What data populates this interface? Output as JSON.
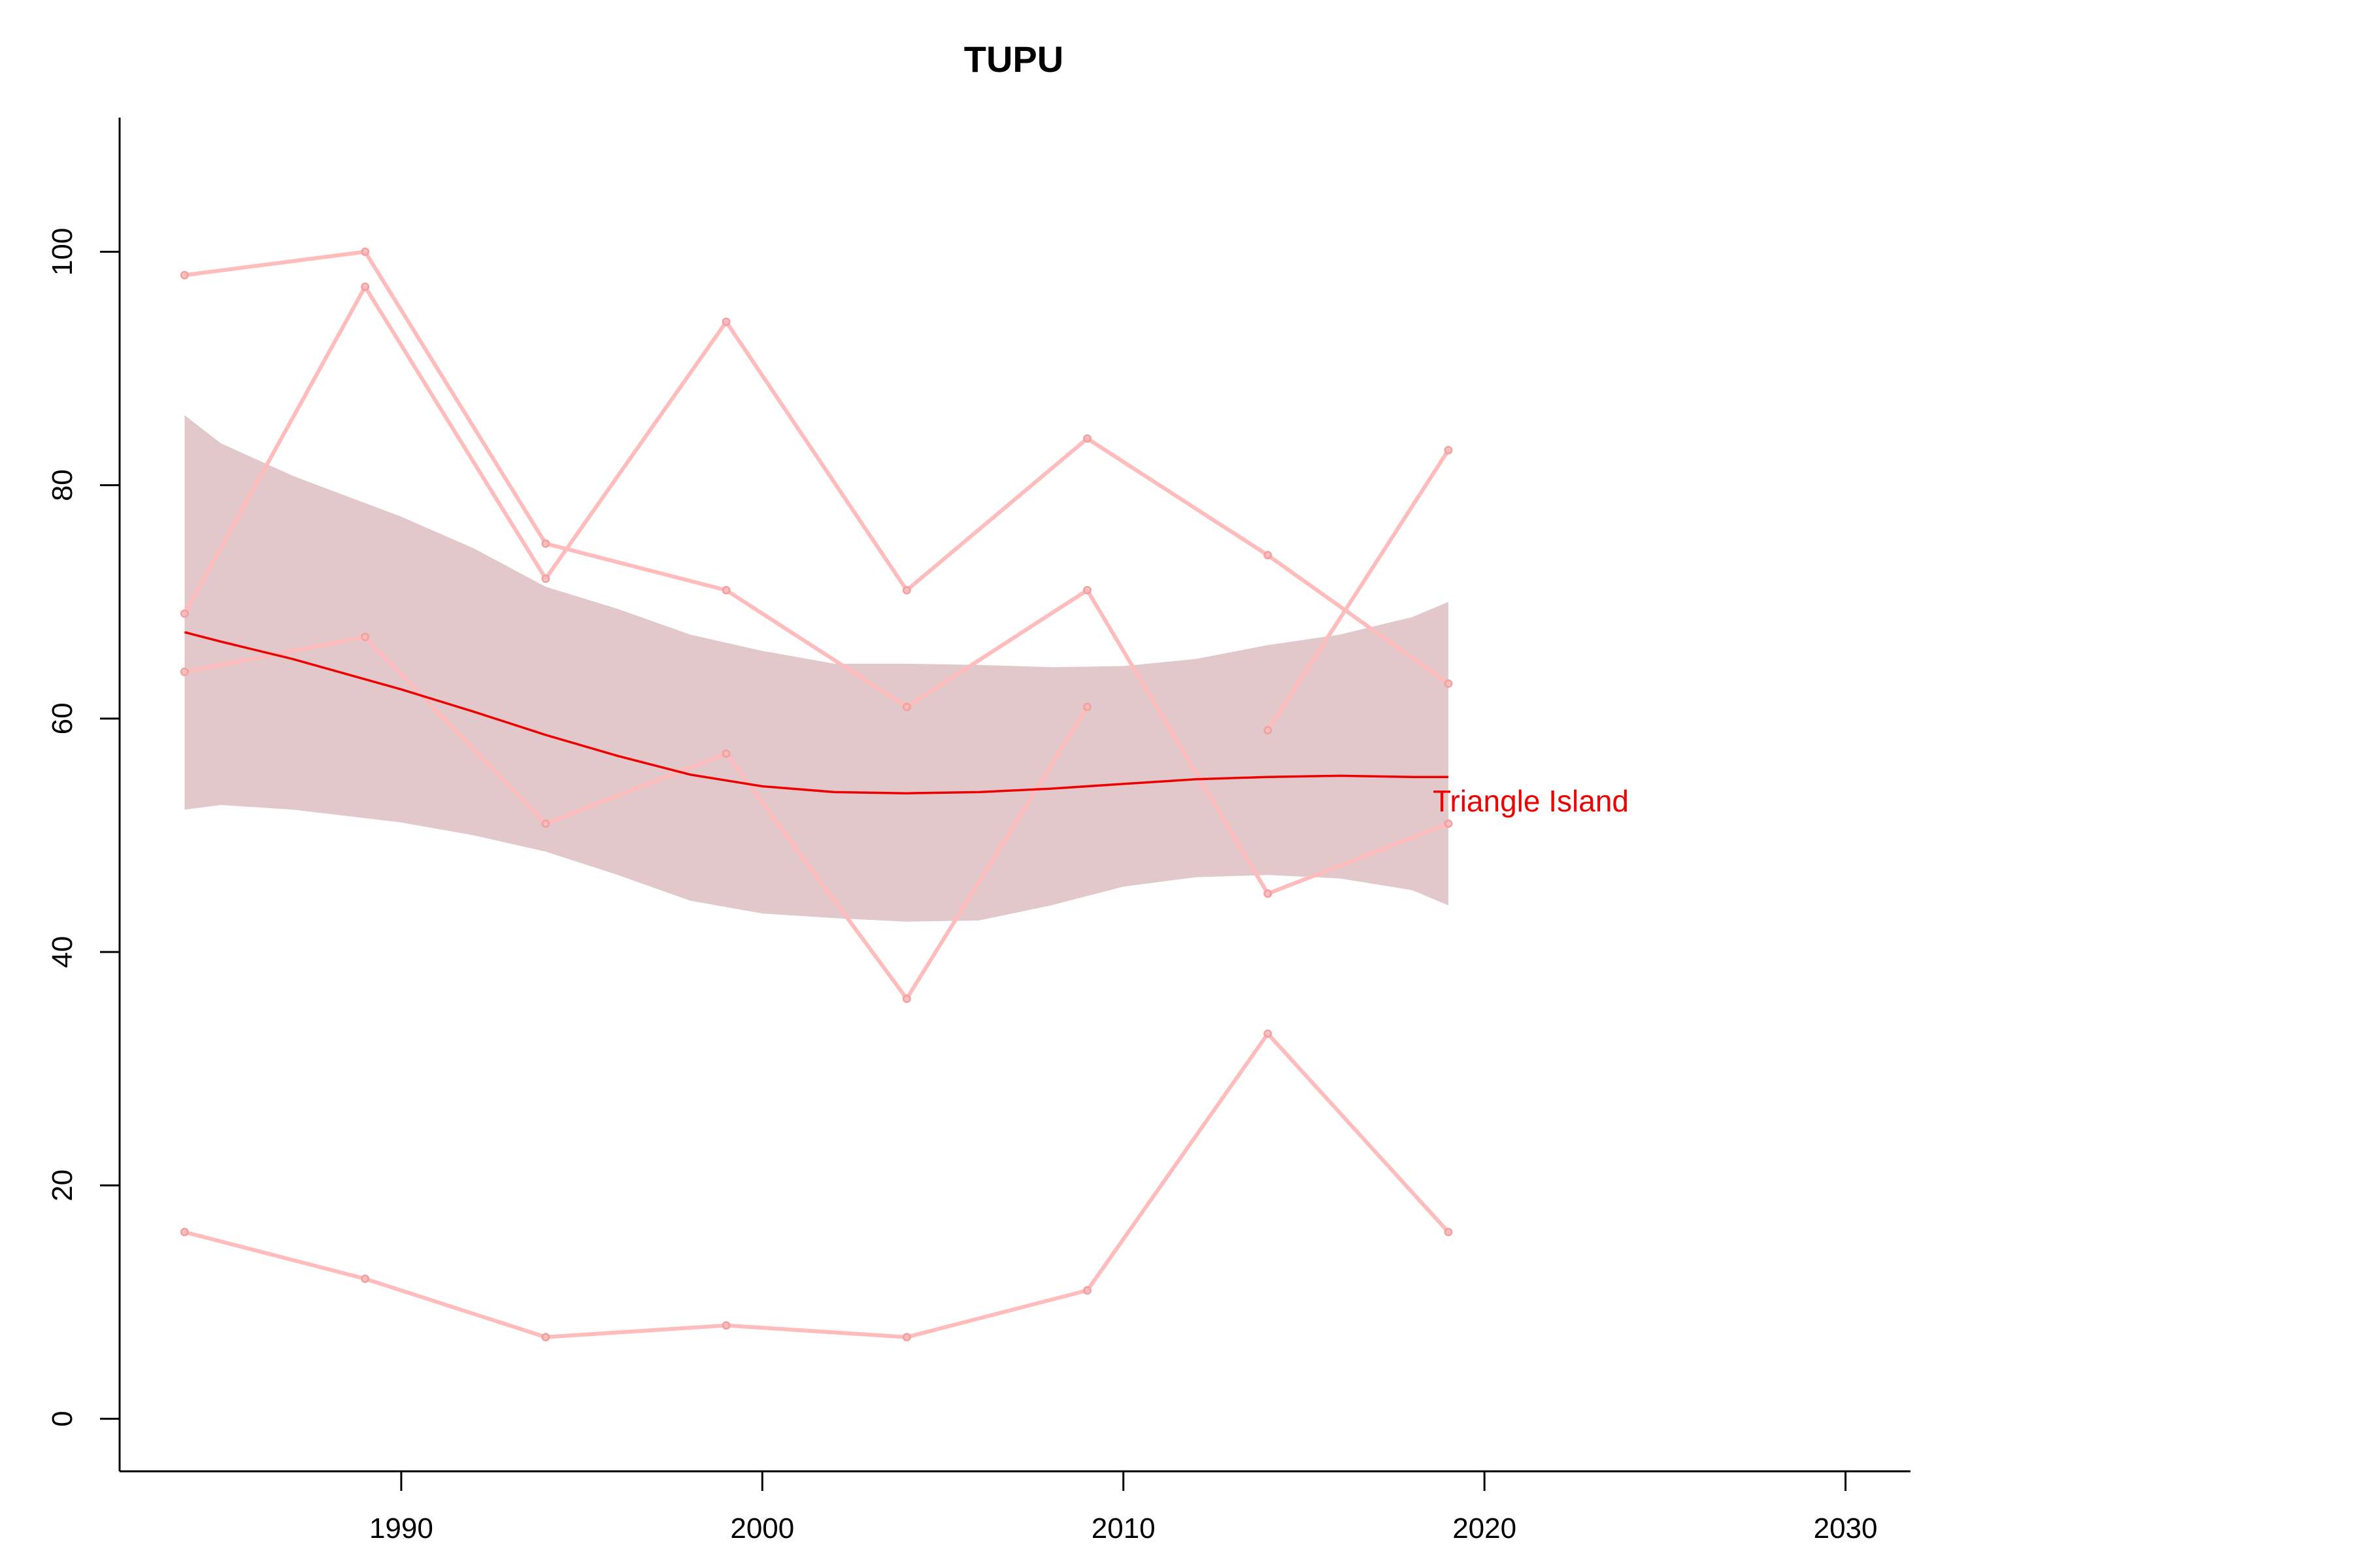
{
  "chart_data": {
    "type": "line",
    "title": "TUPU",
    "xlabel": "",
    "ylabel": "",
    "xlim": [
      1982.2,
      2031.8
    ],
    "ylim": [
      -4.5,
      111.5
    ],
    "x_ticks": [
      1990,
      2000,
      2010,
      2020,
      2030
    ],
    "y_ticks": [
      0,
      20,
      40,
      60,
      80,
      100
    ],
    "grid": false,
    "x": [
      1984,
      1989,
      1994,
      1999,
      2004,
      2009,
      2014,
      2019
    ],
    "series": [
      {
        "values": [
          98,
          100,
          75,
          71,
          61,
          71,
          45,
          51
        ]
      },
      {
        "values": [
          69,
          97,
          72,
          94,
          71,
          84,
          74,
          63
        ]
      },
      {
        "values": [
          64,
          67,
          51,
          57,
          36,
          61,
          null,
          null
        ]
      },
      {
        "values": [
          null,
          null,
          null,
          null,
          null,
          null,
          59,
          83
        ]
      },
      {
        "values": [
          16,
          12,
          7,
          8,
          7,
          11,
          33,
          16
        ]
      }
    ],
    "trend": {
      "label": "Triangle Island",
      "color": "#ee0000",
      "x": [
        1984,
        1985,
        1987,
        1990,
        1992,
        1994,
        1996,
        1998,
        2000,
        2002,
        2004,
        2006,
        2008,
        2010,
        2012,
        2014,
        2016,
        2018,
        2019
      ],
      "mean": [
        67.4,
        66.6,
        65.1,
        62.5,
        60.6,
        58.6,
        56.8,
        55.2,
        54.2,
        53.7,
        53.6,
        53.7,
        54.0,
        54.4,
        54.8,
        55.0,
        55.1,
        55.0,
        55.0
      ],
      "upper": [
        86.0,
        83.6,
        80.8,
        77.3,
        74.6,
        71.3,
        69.4,
        67.2,
        65.8,
        64.7,
        64.7,
        64.6,
        64.4,
        64.5,
        65.1,
        66.3,
        67.2,
        68.7,
        70.0
      ],
      "lower": [
        52.2,
        52.6,
        52.2,
        51.1,
        50.0,
        48.6,
        46.6,
        44.4,
        43.3,
        42.9,
        42.6,
        42.7,
        44.0,
        45.6,
        46.4,
        46.6,
        46.3,
        45.3,
        44.0
      ]
    },
    "colors": {
      "band": "#e2c8ca",
      "observed": "#ffbcbc",
      "observed_points": "#f3a1a1"
    }
  }
}
